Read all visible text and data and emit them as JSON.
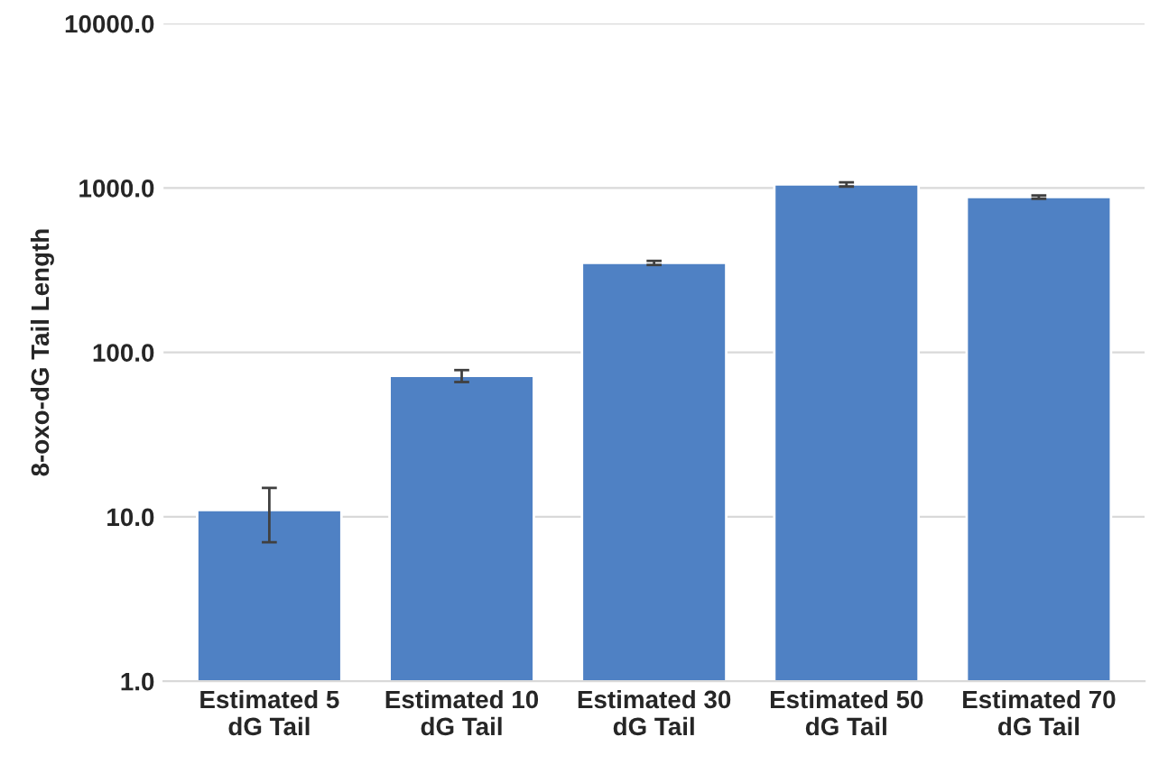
{
  "chart_data": {
    "type": "bar",
    "ylabel": "8-oxo-dG Tail Length",
    "categories": [
      "Estimated 5\ndG Tail",
      "Estimated 10\ndG Tail",
      "Estimated 30\ndG Tail",
      "Estimated 50\ndG Tail",
      "Estimated 70\ndG Tail"
    ],
    "values": [
      11,
      72,
      350,
      1050,
      880
    ],
    "errors": [
      [
        7,
        15
      ],
      [
        66,
        78
      ],
      [
        340,
        360
      ],
      [
        1020,
        1080
      ],
      [
        860,
        900
      ]
    ],
    "color": "#4f81c4",
    "log": true,
    "ylim": [
      1,
      10000
    ],
    "yticks": [
      {
        "value": 1,
        "label": "1.0"
      },
      {
        "value": 10,
        "label": "10.0"
      },
      {
        "value": 100,
        "label": "100.0"
      },
      {
        "value": 1000,
        "label": "1000.0"
      },
      {
        "value": 10000,
        "label": "10000.0"
      }
    ],
    "grid": "y"
  }
}
